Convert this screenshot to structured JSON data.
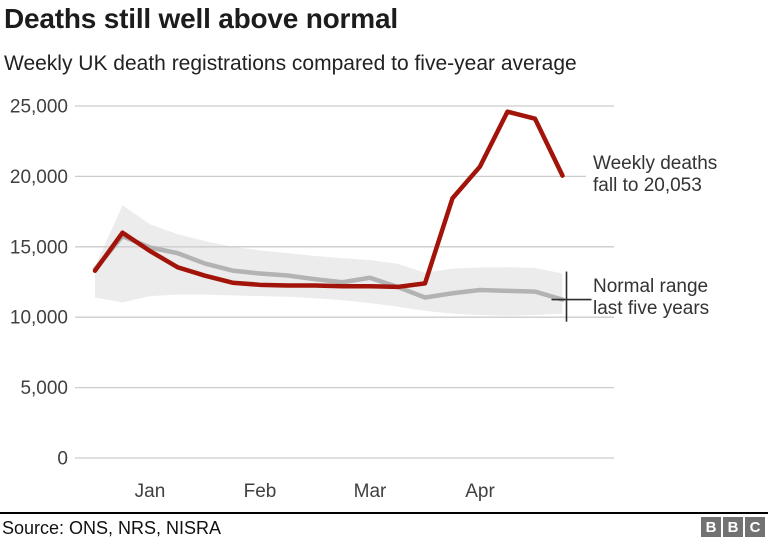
{
  "header": {
    "title": "Deaths still well above normal",
    "subtitle": "Weekly UK death registrations compared to five-year average"
  },
  "annotations": {
    "weekly_deaths_line1": "Weekly deaths",
    "weekly_deaths_line2": "fall to 20,053",
    "normal_range_line1": "Normal range",
    "normal_range_line2": "last five years"
  },
  "footer": {
    "source": "Source: ONS, NRS, NISRA",
    "logo_letters": [
      "B",
      "B",
      "C"
    ]
  },
  "colors": {
    "weekly_deaths_line": "#a2140a",
    "average_line": "#b3b3b3",
    "normal_range_band": "#ececec",
    "gridline": "#cccccc",
    "axis_text": "#404040",
    "marker": "#2b2b2b"
  },
  "chart_data": {
    "type": "line",
    "title": "Deaths still well above normal",
    "subtitle": "Weekly UK death registrations compared to five-year average",
    "x_unit": "week",
    "x": [
      1,
      2,
      3,
      4,
      5,
      6,
      7,
      8,
      9,
      10,
      11,
      12,
      13,
      14,
      15,
      16,
      17,
      18
    ],
    "series": [
      {
        "name": "Weekly deaths",
        "color": "#a2140a",
        "values": [
          13300,
          16000,
          14700,
          13550,
          12950,
          12450,
          12300,
          12250,
          12250,
          12200,
          12200,
          12150,
          12400,
          18450,
          20700,
          24600,
          24100,
          20053
        ]
      },
      {
        "name": "Five-year average",
        "color": "#b3b3b3",
        "values": [
          13400,
          15750,
          14950,
          14550,
          13810,
          13310,
          13100,
          12960,
          12700,
          12480,
          12800,
          12150,
          11400,
          11700,
          11930,
          11870,
          11820,
          11250
        ]
      }
    ],
    "band": {
      "name": "Normal range last five years",
      "color": "#ececec",
      "upper": [
        13600,
        17950,
        16600,
        15900,
        15400,
        15000,
        14750,
        14550,
        14350,
        14200,
        14050,
        13800,
        13170,
        13450,
        13530,
        13550,
        13500,
        13100
      ],
      "lower": [
        11400,
        11050,
        11500,
        11600,
        11600,
        11550,
        11500,
        11450,
        11350,
        11200,
        11000,
        10750,
        10450,
        10250,
        10150,
        10100,
        10150,
        10250
      ]
    },
    "yticks": {
      "values": [
        0,
        5000,
        10000,
        15000,
        20000,
        25000
      ],
      "labels": [
        "0",
        "5,000",
        "10,000",
        "15,000",
        "20,000",
        "25,000"
      ]
    },
    "xticks": {
      "labels": [
        "Jan",
        "Feb",
        "Mar",
        "Apr"
      ],
      "week_indices": [
        2,
        6,
        10,
        14
      ]
    },
    "ylim": [
      0,
      25000
    ],
    "grid": "horizontal",
    "legend_position": "annotated-right",
    "last_point_label": "20,053"
  }
}
